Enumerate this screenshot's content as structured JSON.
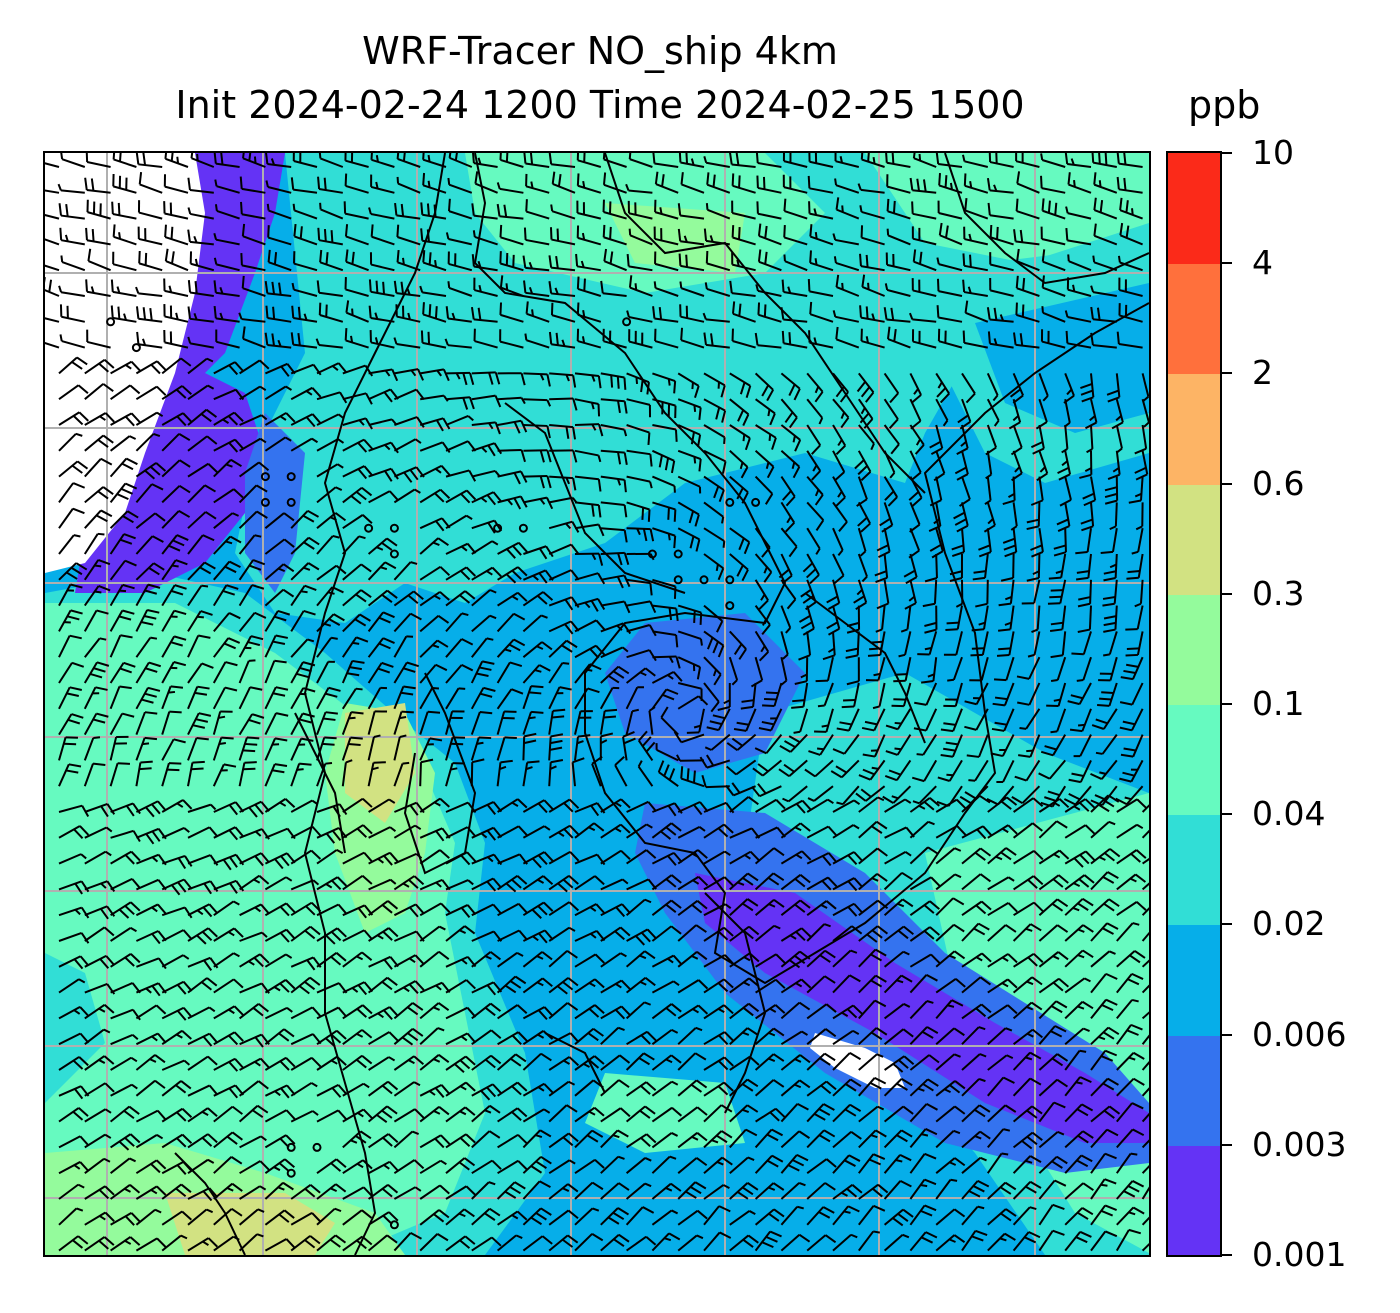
{
  "title": {
    "line1": "WRF-Tracer NO_ship 4km",
    "line2": "Init 2024-02-24 1200 Time 2024-02-25 1500"
  },
  "colorbar": {
    "unit": "ppb",
    "ticks": [
      "0.001",
      "0.003",
      "0.006",
      "0.02",
      "0.04",
      "0.1",
      "0.3",
      "0.6",
      "2",
      "4",
      "10"
    ],
    "colors": [
      "#6433f5",
      "#3473ef",
      "#06aee9",
      "#31ded6",
      "#66fac0",
      "#94fb9c",
      "#d2e282",
      "#fdb465",
      "#ff703c",
      "#fb2a19"
    ]
  },
  "map": {
    "field": "NO_ship tracer concentration",
    "overlay": "wind barbs",
    "gridlines": true,
    "coastlines": true,
    "missing_color": "#ffffff"
  }
}
